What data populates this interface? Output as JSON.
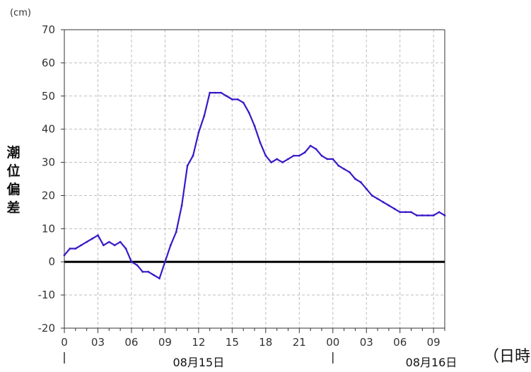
{
  "chart_data": {
    "type": "line",
    "unit": "(cm)",
    "ylabel": "潮位偏差",
    "xlabel": "（日時）",
    "ylim": [
      -20,
      70
    ],
    "y_ticks": [
      -20,
      -10,
      0,
      10,
      20,
      30,
      40,
      50,
      60,
      70
    ],
    "x_range_hours": [
      0,
      34
    ],
    "x_tick_labels": [
      {
        "hour": 0,
        "label": "0"
      },
      {
        "hour": 3,
        "label": "03"
      },
      {
        "hour": 6,
        "label": "06"
      },
      {
        "hour": 9,
        "label": "09"
      },
      {
        "hour": 12,
        "label": "12"
      },
      {
        "hour": 15,
        "label": "15"
      },
      {
        "hour": 18,
        "label": "18"
      },
      {
        "hour": 21,
        "label": "21"
      },
      {
        "hour": 24,
        "label": "00"
      },
      {
        "hour": 27,
        "label": "03"
      },
      {
        "hour": 30,
        "label": "06"
      },
      {
        "hour": 33,
        "label": "09"
      }
    ],
    "date_labels": [
      {
        "hour": 12,
        "label": "08月15日"
      },
      {
        "hour": 32.8,
        "label": "08月16日"
      }
    ],
    "day_dividers": [
      0,
      24
    ],
    "grid": true,
    "zero_line": true,
    "series": [
      {
        "color": "#3a18c8",
        "x": [
          0,
          0.5,
          1,
          1.5,
          2,
          2.5,
          3,
          3.5,
          4,
          4.5,
          5,
          5.5,
          6,
          6.5,
          7,
          7.5,
          8,
          8.5,
          9,
          9.5,
          10,
          10.5,
          11,
          11.5,
          12,
          12.5,
          13,
          13.5,
          14,
          14.5,
          15,
          15.5,
          16,
          16.5,
          17,
          17.5,
          18,
          18.5,
          19,
          19.5,
          20,
          20.5,
          21,
          21.5,
          22,
          22.5,
          23,
          23.5,
          24,
          24.5,
          25,
          25.5,
          26,
          26.5,
          27,
          27.5,
          28,
          28.5,
          29,
          29.5,
          30,
          30.5,
          31,
          31.5,
          32,
          32.5,
          33,
          33.5,
          34
        ],
        "y": [
          2,
          4,
          4,
          5,
          6,
          7,
          8,
          5,
          6,
          5,
          6,
          4,
          0,
          -1,
          -3,
          -3,
          -4,
          -5,
          0,
          5,
          9,
          17,
          29,
          32,
          39,
          44,
          51,
          51,
          51,
          50,
          49,
          49,
          48,
          45,
          41,
          36,
          32,
          30,
          31,
          30,
          31,
          32,
          32,
          33,
          35,
          34,
          32,
          31,
          31,
          29,
          28,
          27,
          25,
          24,
          22,
          20,
          19,
          18,
          17,
          16,
          15,
          15,
          15,
          14,
          14,
          14,
          14,
          15,
          14
        ]
      }
    ]
  }
}
